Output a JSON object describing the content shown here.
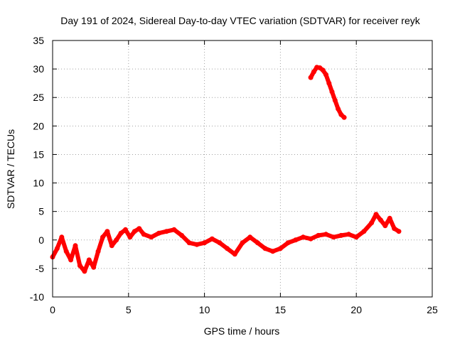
{
  "chart_data": {
    "type": "scatter",
    "title": "Day 191 of 2024, Sidereal Day-to-day VTEC variation (SDTVAR) for receiver reyk",
    "xlabel": "GPS time / hours",
    "ylabel": "SDTVAR / TECUs",
    "xlim": [
      0,
      25
    ],
    "ylim": [
      -10,
      35
    ],
    "xticks": [
      "0",
      "5",
      "10",
      "15",
      "20",
      "25"
    ],
    "yticks": [
      "-10",
      "-5",
      "0",
      "5",
      "10",
      "15",
      "20",
      "25",
      "30",
      "35"
    ],
    "grid": true,
    "series": [
      {
        "name": "SDTVAR reyk",
        "color": "#ff0000",
        "x": [
          0.0,
          0.3,
          0.6,
          0.9,
          1.2,
          1.5,
          1.8,
          2.1,
          2.4,
          2.7,
          3.0,
          3.3,
          3.6,
          3.9,
          4.2,
          4.5,
          4.8,
          5.1,
          5.4,
          5.7,
          6.0,
          6.5,
          7.0,
          7.5,
          8.0,
          8.5,
          9.0,
          9.5,
          10.0,
          10.5,
          11.0,
          11.5,
          12.0,
          12.5,
          13.0,
          13.5,
          14.0,
          14.5,
          15.0,
          15.5,
          16.0,
          16.5,
          17.0,
          17.5,
          18.0,
          18.5,
          19.0,
          19.5,
          20.0,
          20.5,
          21.0,
          21.3,
          21.6,
          21.9,
          22.2,
          22.5,
          22.8
        ],
        "y": [
          -3.0,
          -1.5,
          0.5,
          -2.0,
          -3.5,
          -1.0,
          -4.5,
          -5.5,
          -3.5,
          -4.8,
          -2.0,
          0.5,
          1.5,
          -1.0,
          0.0,
          1.2,
          1.8,
          0.5,
          1.5,
          2.0,
          1.0,
          0.5,
          1.2,
          1.5,
          1.8,
          0.8,
          -0.5,
          -0.8,
          -0.5,
          0.2,
          -0.5,
          -1.5,
          -2.5,
          -0.5,
          0.5,
          -0.5,
          -1.5,
          -2.0,
          -1.5,
          -0.5,
          0.0,
          0.5,
          0.2,
          0.8,
          1.0,
          0.5,
          0.8,
          1.0,
          0.5,
          1.5,
          3.0,
          4.5,
          3.5,
          2.5,
          3.8,
          2.0,
          1.5
        ]
      },
      {
        "name": "SDTVAR reyk (upper arc)",
        "color": "#ff0000",
        "x": [
          17.0,
          17.2,
          17.4,
          17.6,
          17.8,
          18.0,
          18.2,
          18.4,
          18.6,
          18.8,
          19.0,
          19.2
        ],
        "y": [
          28.5,
          29.5,
          30.3,
          30.2,
          29.8,
          29.0,
          27.5,
          26.0,
          24.5,
          23.0,
          22.0,
          21.5
        ]
      }
    ]
  }
}
